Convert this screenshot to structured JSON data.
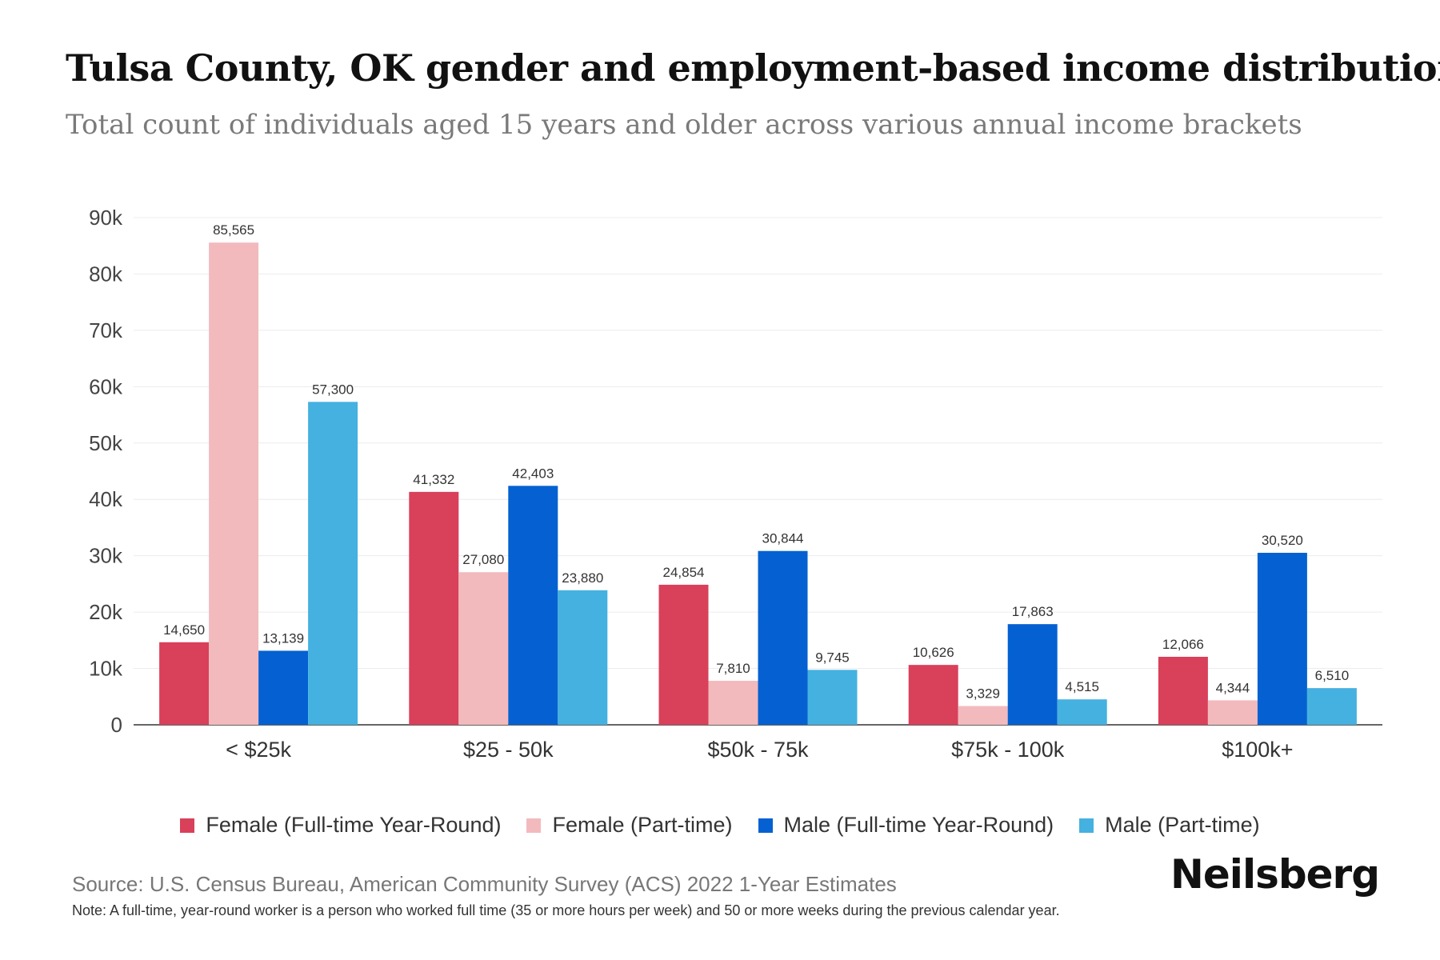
{
  "title": "Tulsa County, OK gender and employment-based income distribution",
  "subtitle": "Total count of individuals aged 15 years and older across various annual income brackets",
  "source": "Source: U.S. Census Bureau, American Community Survey (ACS) 2022 1-Year Estimates",
  "note": "Note: A full-time, year-round worker is a person who worked full time (35 or more hours per week) and 50 or more weeks during the previous calendar year.",
  "brand": "Neilsberg",
  "chart_data": {
    "type": "bar",
    "title": "Tulsa County, OK gender and employment-based income distribution",
    "categories": [
      "< $25k",
      "$25 - 50k",
      "$50k - 75k",
      "$75k - 100k",
      "$100k+"
    ],
    "series": [
      {
        "name": "Female (Full-time Year-Round)",
        "color": "#d9405a",
        "values": [
          14650,
          41332,
          24854,
          10626,
          12066
        ]
      },
      {
        "name": "Female (Part-time)",
        "color": "#f2babd",
        "values": [
          85565,
          27080,
          7810,
          3329,
          4344
        ]
      },
      {
        "name": "Male (Full-time Year-Round)",
        "color": "#0561d1",
        "values": [
          13139,
          42403,
          30844,
          17863,
          30520
        ]
      },
      {
        "name": "Male (Part-time)",
        "color": "#45b1e0",
        "values": [
          57300,
          23880,
          9745,
          4515,
          6510
        ]
      }
    ],
    "yticks": [
      "0",
      "10k",
      "20k",
      "30k",
      "40k",
      "50k",
      "60k",
      "70k",
      "80k",
      "90k"
    ],
    "ylim": [
      0,
      90000
    ],
    "xlabel": "",
    "ylabel": "",
    "legend": "bottom"
  }
}
